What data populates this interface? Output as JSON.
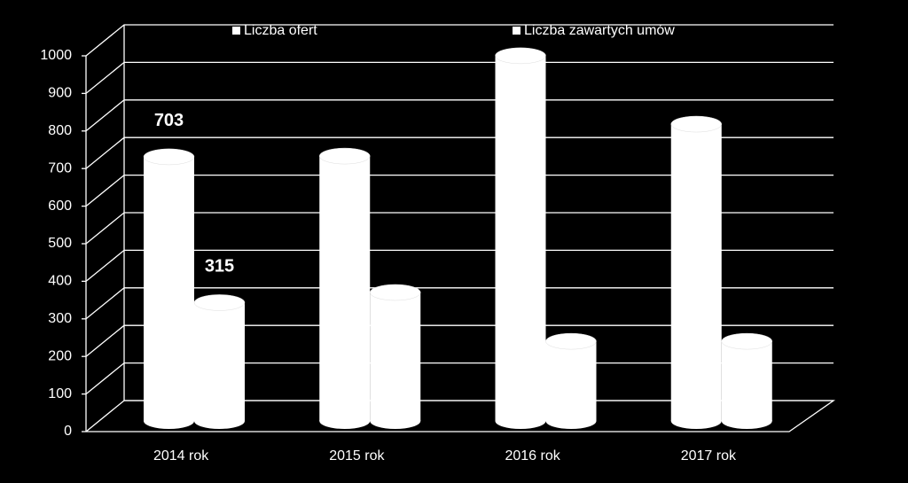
{
  "chart_data": {
    "type": "cylinder-bar",
    "categories": [
      "2014 rok",
      "2015 rok",
      "2016 rok",
      "2017 rok"
    ],
    "series": [
      {
        "name": "Liczba ofert",
        "color": "#ffffff",
        "values": [
          703,
          705,
          972,
          790
        ],
        "value_labels": [
          "703",
          null,
          null,
          null
        ]
      },
      {
        "name": "Liczba zawartych umów",
        "color": "#ffffff",
        "values": [
          315,
          342,
          212,
          212
        ],
        "value_labels": [
          "315",
          null,
          null,
          null
        ]
      }
    ],
    "ylim": [
      0,
      1000
    ],
    "yticks": [
      0,
      100,
      200,
      300,
      400,
      500,
      600,
      700,
      800,
      900,
      1000
    ],
    "grid": true
  }
}
